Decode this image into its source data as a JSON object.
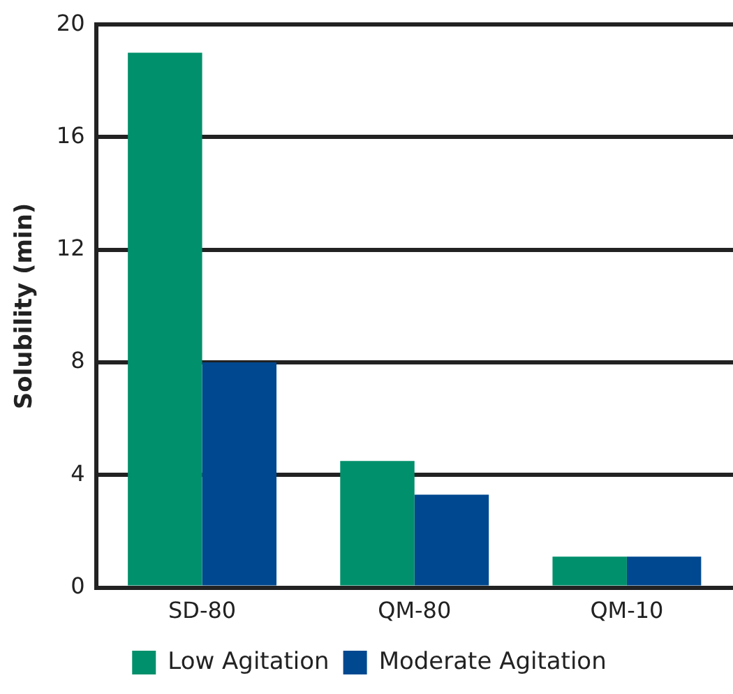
{
  "chart_data": {
    "type": "bar",
    "ylabel": "Solubility (min)",
    "categories": [
      "SD-80",
      "QM-80",
      "QM-10"
    ],
    "series": [
      {
        "name": "Low Agitation",
        "color": "#00906b",
        "values": [
          19,
          4.5,
          1.1
        ]
      },
      {
        "name": "Moderate Agitation",
        "color": "#00488f",
        "values": [
          8,
          3.3,
          1.1
        ]
      }
    ],
    "ylim": [
      0,
      20
    ],
    "yticks": [
      0,
      4,
      8,
      12,
      16,
      20
    ],
    "grid": "y",
    "legend": "bottom"
  }
}
